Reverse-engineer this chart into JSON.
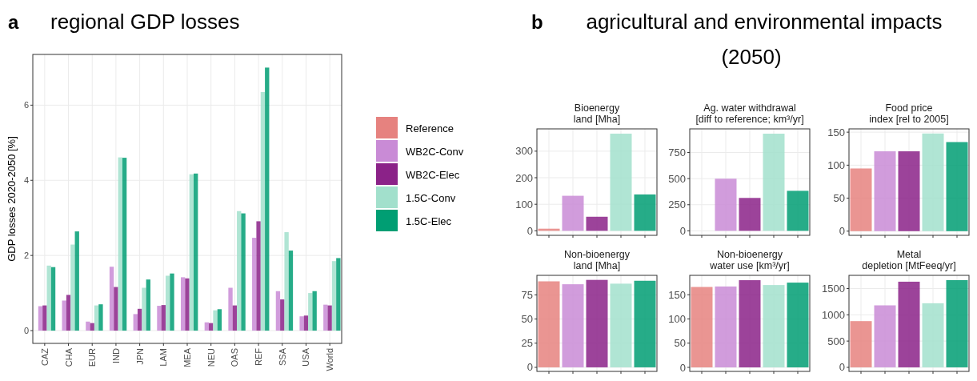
{
  "chart_data": [
    {
      "type": "bar",
      "title": "regional GDP losses",
      "annotations": [
        "a"
      ],
      "ylabel": "GDP losses 2020-2050 [%]",
      "categories": [
        "CAZ",
        "CHA",
        "EUR",
        "IND",
        "JPN",
        "LAM",
        "MEA",
        "NEU",
        "OAS",
        "REF",
        "SSA",
        "USA",
        "World"
      ],
      "series": [
        {
          "name": "Reference",
          "color": "#e6827f",
          "values": [
            0,
            0,
            0,
            0,
            0,
            0,
            0,
            0,
            0,
            0,
            0,
            0,
            0
          ]
        },
        {
          "name": "WB2C-Conv",
          "color": "#c98bd6",
          "values": [
            0.65,
            0.8,
            0.24,
            1.7,
            0.44,
            0.66,
            1.42,
            0.22,
            1.14,
            2.47,
            1.05,
            0.38,
            0.69
          ]
        },
        {
          "name": "WB2C-Elec",
          "color": "#8b2288",
          "values": [
            0.67,
            0.95,
            0.2,
            1.16,
            0.58,
            0.68,
            1.39,
            0.2,
            0.67,
            2.91,
            0.83,
            0.4,
            0.67
          ]
        },
        {
          "name": "1.5C-Conv",
          "color": "#a2e0cc",
          "values": [
            1.73,
            2.29,
            0.67,
            4.61,
            1.14,
            1.46,
            4.16,
            0.54,
            3.18,
            6.35,
            2.62,
            1.0,
            1.85
          ]
        },
        {
          "name": "1.5C-Elec",
          "color": "#009e73",
          "values": [
            1.69,
            2.64,
            0.7,
            4.6,
            1.36,
            1.52,
            4.18,
            0.57,
            3.12,
            7.0,
            2.13,
            1.05,
            1.93
          ]
        }
      ],
      "ylim": [
        -0.34,
        7.35
      ],
      "yticks": [
        0,
        2,
        4,
        6
      ],
      "grid": true,
      "legend": "right"
    },
    {
      "type": "other",
      "title": "agricultural and environmental impacts (2050)",
      "annotations": [
        "b"
      ]
    },
    {
      "type": "bar",
      "title": "Bioenergy\nland [Mha]",
      "categories": [
        null,
        null,
        null,
        null,
        null
      ],
      "values": [
        8,
        132,
        53,
        366,
        137
      ],
      "colors": [
        "#e6827f",
        "#c98bd6",
        "#8b2288",
        "#a2e0cc",
        "#009e73"
      ],
      "ylim": [
        -17,
        384
      ],
      "yticks": [
        0,
        100,
        200,
        300
      ],
      "grid": true,
      "tick_labels": "y"
    },
    {
      "type": "bar",
      "title": "Ag. water withdrawal\n[diff to reference; km³/yr]",
      "categories": [
        null,
        null,
        null,
        null,
        null
      ],
      "values": [
        0,
        499,
        315,
        930,
        383
      ],
      "colors": [
        "#e6827f",
        "#c98bd6",
        "#8b2288",
        "#a2e0cc",
        "#009e73"
      ],
      "ylim": [
        -43,
        976
      ],
      "yticks": [
        0,
        250,
        500,
        750
      ],
      "grid": true,
      "tick_labels": "y"
    },
    {
      "type": "bar",
      "title": "Food price\nindex [rel to 2005]",
      "categories": [
        null,
        null,
        null,
        null,
        null
      ],
      "values": [
        95,
        121,
        121,
        148,
        135
      ],
      "colors": [
        "#e6827f",
        "#c98bd6",
        "#8b2288",
        "#a2e0cc",
        "#009e73"
      ],
      "ylim": [
        -6.3,
        155
      ],
      "yticks": [
        0,
        50,
        100,
        150
      ],
      "grid": true,
      "tick_labels": "y"
    },
    {
      "type": "bar",
      "title": "Non-bioenergy\nland [Mha]",
      "categories": [
        null,
        null,
        null,
        null,
        null
      ],
      "values": [
        89,
        86,
        90.5,
        86.6,
        89.6
      ],
      "colors": [
        "#e6827f",
        "#c98bd6",
        "#8b2288",
        "#a2e0cc",
        "#009e73"
      ],
      "ylim": [
        -4.2,
        95.2
      ],
      "yticks": [
        0,
        25,
        50,
        75
      ],
      "grid": true,
      "tick_labels": "y"
    },
    {
      "type": "bar",
      "title": "Non-bioenergy\nwater use [km³/yr]",
      "categories": [
        null,
        null,
        null,
        null,
        null
      ],
      "values": [
        166,
        167,
        180,
        170,
        175
      ],
      "colors": [
        "#e6827f",
        "#c98bd6",
        "#8b2288",
        "#a2e0cc",
        "#009e73"
      ],
      "ylim": [
        -8.3,
        190
      ],
      "yticks": [
        0,
        50,
        100,
        150
      ],
      "grid": true,
      "tick_labels": "y"
    },
    {
      "type": "bar",
      "title": "Metal\ndepletion [MtFeeq/yr]",
      "categories": [
        null,
        null,
        null,
        null,
        null
      ],
      "values": [
        880,
        1180,
        1630,
        1220,
        1660
      ],
      "colors": [
        "#e6827f",
        "#c98bd6",
        "#8b2288",
        "#a2e0cc",
        "#009e73"
      ],
      "ylim": [
        -77,
        1751
      ],
      "yticks": [
        0,
        500,
        1000,
        1500
      ],
      "grid": true,
      "tick_labels": "y"
    }
  ]
}
